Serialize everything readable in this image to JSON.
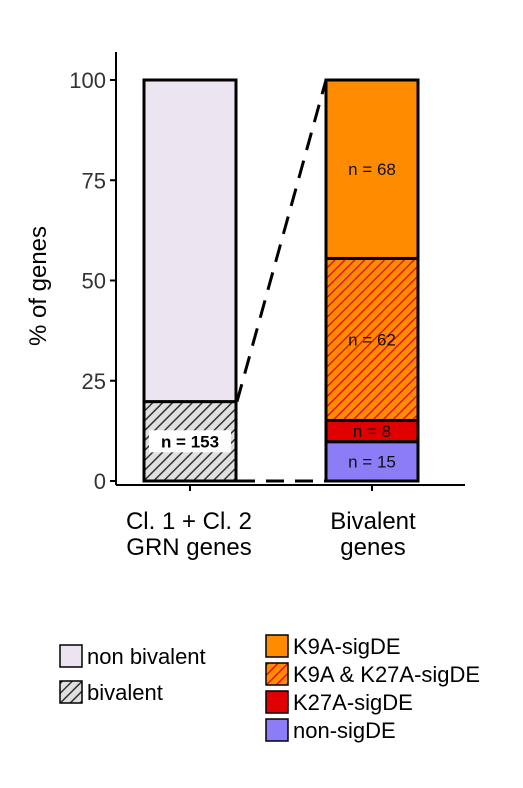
{
  "chart_data": {
    "type": "bar",
    "stacked": true,
    "ylabel": "% of genes",
    "ylim": [
      0,
      100
    ],
    "yticks": [
      0,
      25,
      50,
      75,
      100
    ],
    "categories": [
      "Cl. 1 + Cl. 2\nGRN genes",
      "Bivalent\ngenes"
    ],
    "category_lines": [
      [
        "Cl. 1 + Cl. 2",
        "GRN genes"
      ],
      [
        "Bivalent",
        "genes"
      ]
    ],
    "bars": [
      {
        "category": "Cl. 1 + Cl. 2 GRN genes",
        "segments": [
          {
            "name": "bivalent",
            "from": 0,
            "to": 19.8,
            "label": "n = 153",
            "fill": "#e0e0e0",
            "hatch": "#333333"
          },
          {
            "name": "non bivalent",
            "from": 19.8,
            "to": 100,
            "label": "",
            "fill": "#ece4f0"
          }
        ]
      },
      {
        "category": "Bivalent genes",
        "segments": [
          {
            "name": "non-sigDE",
            "from": 0,
            "to": 9.8,
            "label": "n = 15",
            "fill": "#8c7cf5"
          },
          {
            "name": "K27A-sigDE",
            "from": 9.8,
            "to": 15.1,
            "label": "n = 8",
            "fill": "#e00000"
          },
          {
            "name": "K9A & K27A-sigDE",
            "from": 15.1,
            "to": 55.5,
            "label": "n = 62",
            "fill": "#ff8c00",
            "hatch": "#e00000"
          },
          {
            "name": "K9A-sigDE",
            "from": 55.5,
            "to": 100,
            "label": "n = 68",
            "fill": "#ff8c00"
          }
        ]
      }
    ],
    "legend_left": [
      {
        "name": "non bivalent",
        "fill": "#ece4f0"
      },
      {
        "name": "bivalent",
        "fill": "#e0e0e0",
        "hatch": "#333333"
      }
    ],
    "legend_right": [
      {
        "name": "K9A-sigDE",
        "fill": "#ff8c00"
      },
      {
        "name": "K9A & K27A-sigDE",
        "fill": "#ff8c00",
        "hatch": "#e00000"
      },
      {
        "name": "K27A-sigDE",
        "fill": "#e00000"
      },
      {
        "name": "non-sigDE",
        "fill": "#8c7cf5"
      }
    ],
    "legend_position": "bottom"
  }
}
